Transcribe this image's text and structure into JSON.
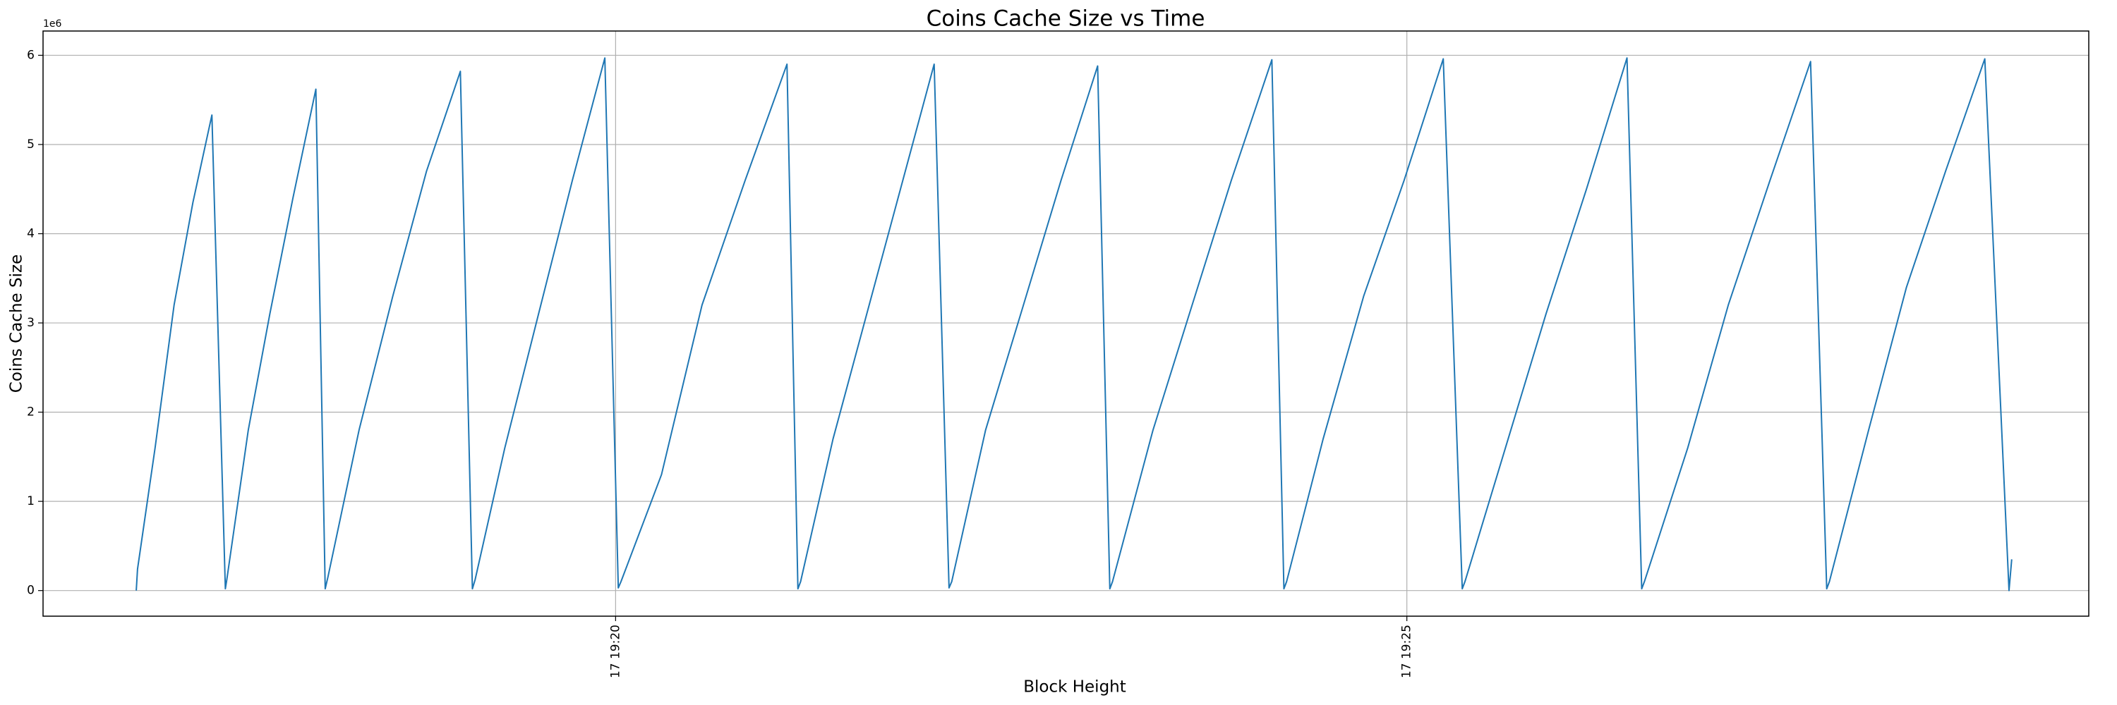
{
  "chart_data": {
    "type": "line",
    "title": "Coins Cache Size vs Time",
    "x_label": "Block Height",
    "y_label": "Coins Cache Size",
    "y_offset_text": "1e6",
    "grid": true,
    "xlim": [
      16.382,
      29.309
    ],
    "ylim": [
      -287000,
      6272000
    ],
    "xticks": [
      {
        "value": 20,
        "label": "17 19:20"
      },
      {
        "value": 25,
        "label": "17 19:25"
      }
    ],
    "yticks": [
      {
        "value": 0,
        "label": "0"
      },
      {
        "value": 1000000,
        "label": "1"
      },
      {
        "value": 2000000,
        "label": "2"
      },
      {
        "value": 3000000,
        "label": "3"
      },
      {
        "value": 4000000,
        "label": "4"
      },
      {
        "value": 5000000,
        "label": "5"
      },
      {
        "value": 6000000,
        "label": "6"
      }
    ],
    "x": [
      16.971,
      16.979,
      17.09,
      17.21,
      17.329,
      17.449,
      17.534,
      17.543,
      17.679,
      17.815,
      17.961,
      18.106,
      18.165,
      18.182,
      18.379,
      18.592,
      18.805,
      19.019,
      19.095,
      19.112,
      19.3,
      19.513,
      19.727,
      19.932,
      20.017,
      20.034,
      20.29,
      20.546,
      20.819,
      21.083,
      21.152,
      21.169,
      21.374,
      21.587,
      21.8,
      22.013,
      22.107,
      22.124,
      22.338,
      22.577,
      22.815,
      23.046,
      23.123,
      23.14,
      23.396,
      23.643,
      23.891,
      24.147,
      24.223,
      24.24,
      24.471,
      24.727,
      24.983,
      25.23,
      25.35,
      25.367,
      25.623,
      25.879,
      26.135,
      26.391,
      26.484,
      26.501,
      26.775,
      27.031,
      27.295,
      27.551,
      27.653,
      27.67,
      27.918,
      28.157,
      28.404,
      28.652,
      28.805,
      28.822
    ],
    "series": [
      {
        "name": "Coins Cache Size",
        "color": "#1f77b4",
        "values": [
          0,
          240000,
          1600000,
          3200000,
          4350000,
          5330000,
          20000,
          120000,
          1800000,
          3100000,
          4400000,
          5620000,
          20000,
          150000,
          1800000,
          3300000,
          4700000,
          5820000,
          20000,
          120000,
          1600000,
          3100000,
          4600000,
          5970000,
          30000,
          100000,
          1300000,
          3200000,
          4600000,
          5900000,
          20000,
          100000,
          1700000,
          3100000,
          4500000,
          5900000,
          30000,
          100000,
          1800000,
          3200000,
          4600000,
          5880000,
          20000,
          100000,
          1800000,
          3200000,
          4600000,
          5950000,
          20000,
          100000,
          1700000,
          3300000,
          4600000,
          5960000,
          20000,
          100000,
          1600000,
          3100000,
          4500000,
          5970000,
          20000,
          100000,
          1600000,
          3200000,
          4600000,
          5930000,
          20000,
          100000,
          1800000,
          3400000,
          4700000,
          5960000,
          0,
          350000
        ]
      }
    ]
  }
}
